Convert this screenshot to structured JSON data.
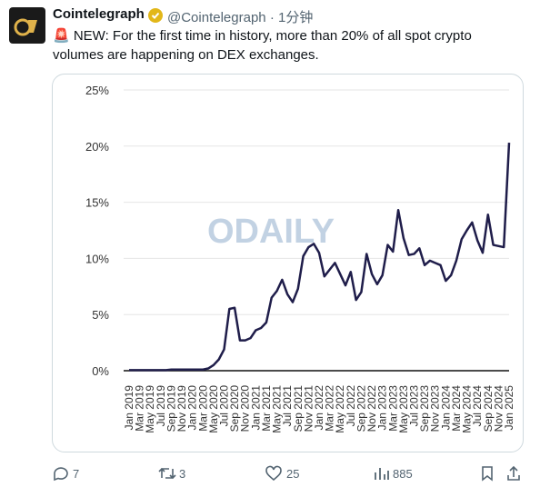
{
  "tweet": {
    "author": "Cointelegraph",
    "handle": "@Cointelegraph",
    "separator": "·",
    "time": "1分钟",
    "text": "🚨 NEW: For the first time in history, more than 20% of all spot crypto volumes are happening on DEX exchanges.",
    "watermark": "ODAILY",
    "replies": "7",
    "retweets": "3",
    "likes": "25",
    "views": "885"
  },
  "chart_data": {
    "type": "line",
    "color": "#1f1d4a",
    "categories": [
      "Jan 2019",
      null,
      "Mar 2019",
      null,
      "May 2019",
      null,
      "Jul 2019",
      null,
      "Sep 2019",
      null,
      "Nov 2019",
      null,
      "Jan 2020",
      null,
      "Mar 2020",
      null,
      "May 2020",
      null,
      "Jul 2020",
      null,
      "Sep 2020",
      null,
      "Nov 2020",
      null,
      "Jan 2021",
      null,
      "Mar 2021",
      null,
      "May 2021",
      null,
      "Jul 2021",
      null,
      "Sep 2021",
      null,
      "Nov 2021",
      null,
      "Jan 2022",
      null,
      "Mar 2022",
      null,
      "May 2022",
      null,
      "Jul 2022",
      null,
      "Sep 2022",
      null,
      "Nov 2022",
      null,
      "Jan 2023",
      null,
      "Mar 2023",
      null,
      "May 2023",
      null,
      "Jul 2023",
      null,
      "Sep 2023",
      null,
      "Nov 2023",
      null,
      "Jan 2024",
      null,
      "Mar 2024",
      null,
      "May 2024",
      null,
      "Jul 2024",
      null,
      "Sep 2024",
      null,
      "Nov 2024",
      null,
      "Jan 2025"
    ],
    "values": [
      0.05,
      0.05,
      0.05,
      0.05,
      0.05,
      0.05,
      0.05,
      0.05,
      0.1,
      0.1,
      0.1,
      0.1,
      0.1,
      0.1,
      0.1,
      0.2,
      0.5,
      1.0,
      1.9,
      5.5,
      5.6,
      2.7,
      2.7,
      2.9,
      3.6,
      3.8,
      4.3,
      6.5,
      7.1,
      8.1,
      6.8,
      6.1,
      7.3,
      10.2,
      11.0,
      11.3,
      10.5,
      8.4,
      9.0,
      9.6,
      8.6,
      7.6,
      8.8,
      6.3,
      7.0,
      10.4,
      8.6,
      7.7,
      8.5,
      11.2,
      10.6,
      14.3,
      11.8,
      10.3,
      10.4,
      10.9,
      9.4,
      9.8,
      9.6,
      9.4,
      8.0,
      8.5,
      9.8,
      11.7,
      12.5,
      13.2,
      11.6,
      10.5,
      13.9,
      11.2,
      11.1,
      11.0,
      20.3
    ],
    "ylim": [
      0,
      25
    ],
    "yticks": [
      {
        "value": 0,
        "label": "0%"
      },
      {
        "value": 5,
        "label": "5%"
      },
      {
        "value": 10,
        "label": "10%"
      },
      {
        "value": 15,
        "label": "15%"
      },
      {
        "value": 20,
        "label": "20%"
      },
      {
        "value": 25,
        "label": "25%"
      }
    ],
    "grid": true
  }
}
